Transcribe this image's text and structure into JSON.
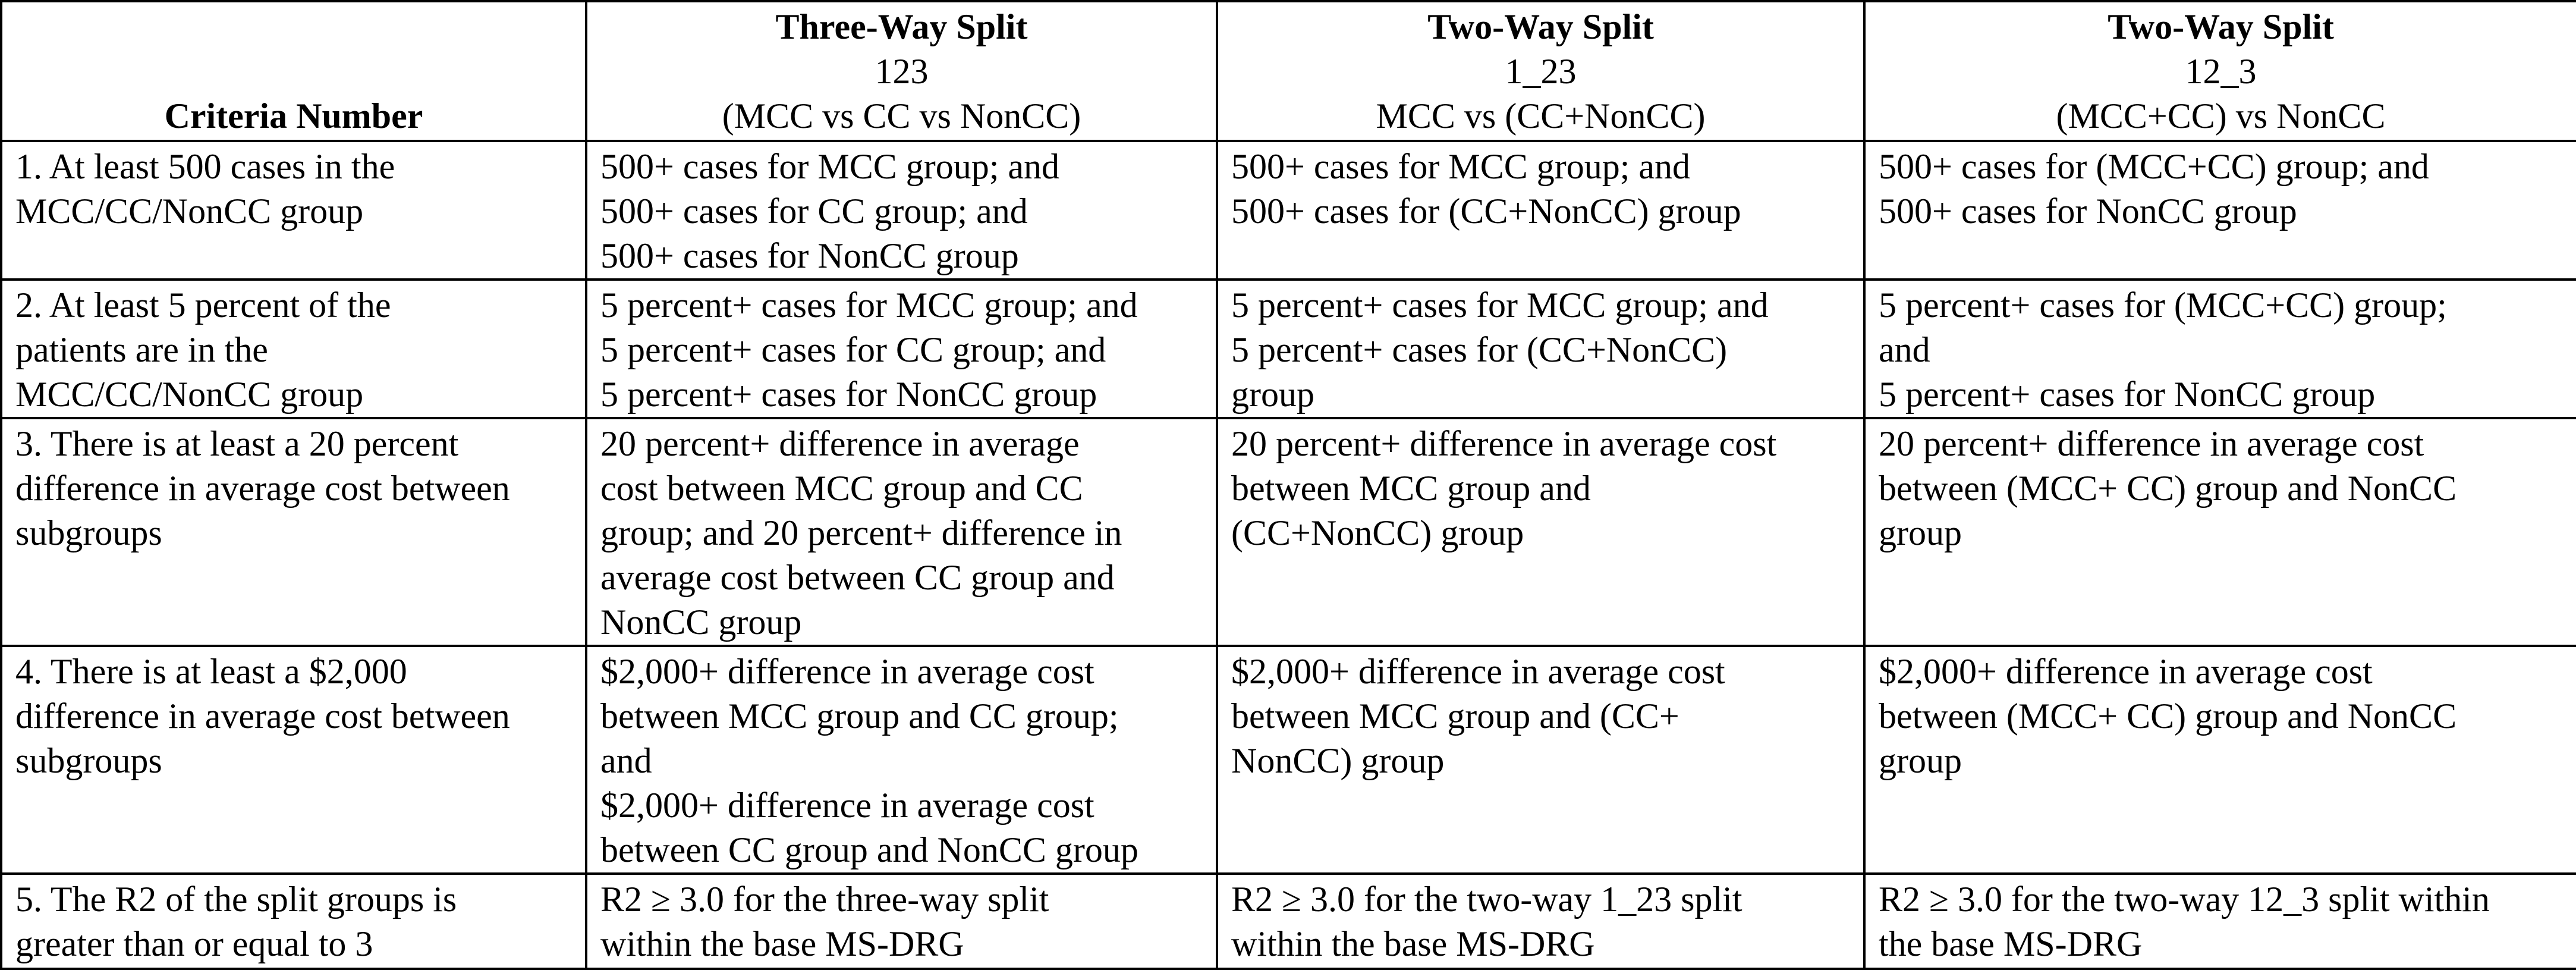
{
  "header": {
    "criteria": "Criteria Number",
    "col2": {
      "title": "Three-Way Split",
      "code": "123",
      "desc": "(MCC vs CC vs NonCC)"
    },
    "col3": {
      "title": "Two-Way Split",
      "code": "1_23",
      "desc": "MCC vs (CC+NonCC)"
    },
    "col4": {
      "title": "Two-Way Split",
      "code": "12_3",
      "desc": "(MCC+CC) vs NonCC"
    }
  },
  "rows": [
    {
      "criteria": [
        "1.  At least 500 cases in the",
        "MCC/CC/NonCC group"
      ],
      "three_way": [
        "500+ cases for MCC group; and",
        "500+ cases for CC group; and",
        "500+ cases for NonCC group"
      ],
      "two_way_1_23": [
        "500+ cases for MCC group; and",
        "500+ cases for (CC+NonCC) group"
      ],
      "two_way_12_3": [
        "500+ cases for (MCC+CC) group; and",
        "500+ cases for NonCC group"
      ]
    },
    {
      "criteria": [
        "2.  At least 5 percent of the",
        "patients are in the",
        "MCC/CC/NonCC group"
      ],
      "three_way": [
        "5 percent+ cases for MCC group; and",
        "5 percent+ cases for CC group; and",
        "5 percent+ cases for NonCC group"
      ],
      "two_way_1_23": [
        "5 percent+ cases for MCC group; and",
        "5 percent+ cases for (CC+NonCC)",
        "group"
      ],
      "two_way_12_3": [
        "5 percent+ cases for (MCC+CC) group;",
        "and",
        "5 percent+ cases for NonCC group"
      ]
    },
    {
      "criteria": [
        "3. There is at least a 20 percent",
        "difference in average cost between",
        "subgroups"
      ],
      "three_way": [
        "20 percent+ difference in average",
        "cost between MCC group and CC",
        "group; and 20 percent+ difference in",
        "average cost between CC group and",
        "NonCC group"
      ],
      "two_way_1_23": [
        "20 percent+ difference in average cost",
        "between MCC group and",
        "(CC+NonCC) group"
      ],
      "two_way_12_3": [
        "20 percent+ difference in average cost",
        "between (MCC+ CC) group and NonCC",
        "group"
      ]
    },
    {
      "criteria": [
        "4.  There is at least a $2,000",
        "difference in average cost between",
        "subgroups"
      ],
      "three_way": [
        "$2,000+ difference in average cost",
        "between MCC group and CC group;",
        "and",
        "$2,000+ difference in average cost",
        "between CC group and NonCC group"
      ],
      "two_way_1_23": [
        "$2,000+ difference in average cost",
        "between MCC group and (CC+",
        "NonCC) group"
      ],
      "two_way_12_3": [
        "$2,000+ difference in average cost",
        "between (MCC+ CC) group and NonCC",
        "group"
      ]
    },
    {
      "criteria": [
        "5.  The R2 of the split groups is",
        "greater than or equal to 3"
      ],
      "three_way": [
        "R2 ≥ 3.0 for the three-way split",
        "within the base MS-DRG"
      ],
      "two_way_1_23": [
        "R2 ≥ 3.0 for the two-way 1_23 split",
        "within the base MS-DRG"
      ],
      "two_way_12_3": [
        "R2 ≥ 3.0 for the two-way 12_3 split within",
        "the base MS-DRG"
      ]
    }
  ]
}
